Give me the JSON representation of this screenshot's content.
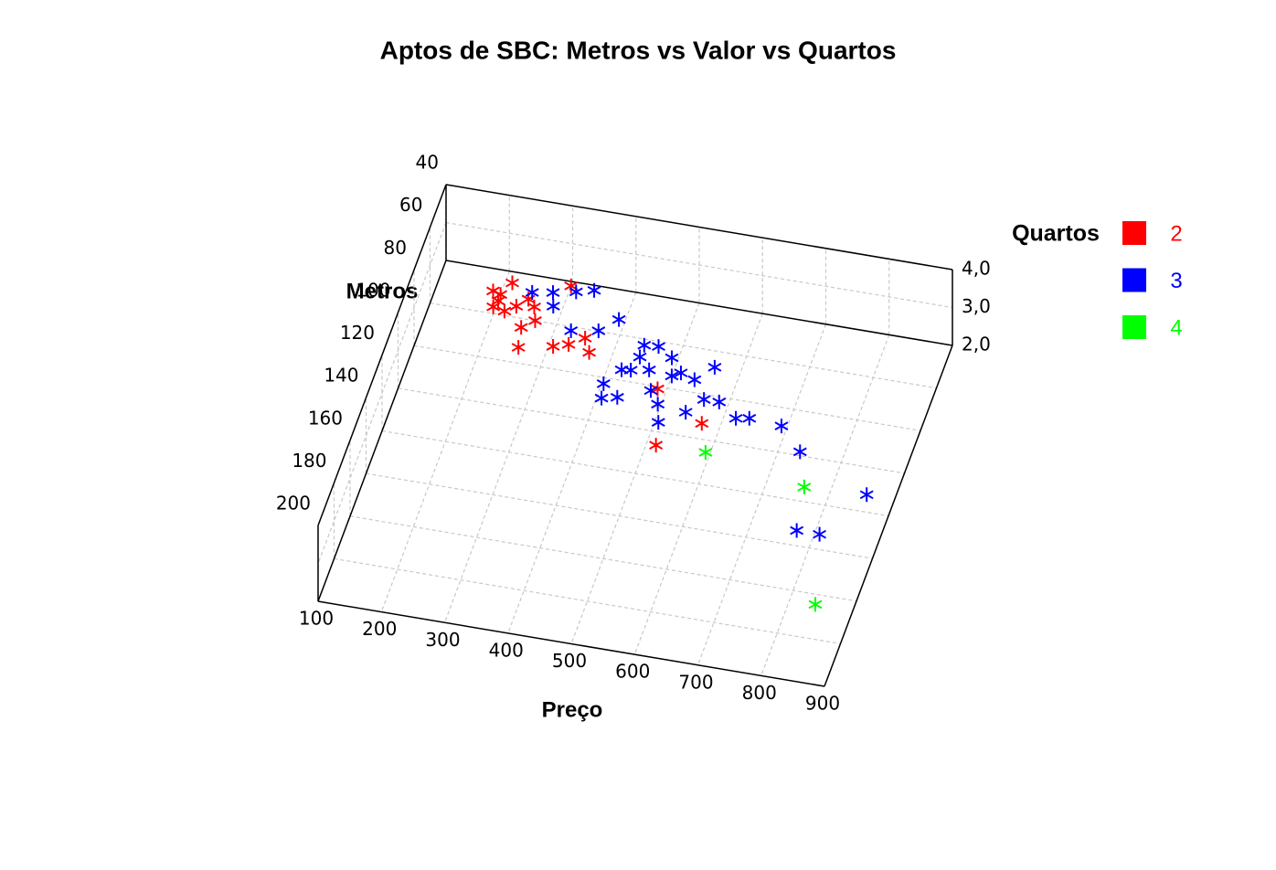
{
  "chart_data": {
    "type": "scatter3d",
    "title": "Aptos de SBC: Metros vs Valor vs Quartos",
    "x_label": "Preço",
    "y_label": "Metros",
    "legend_title": "Quartos",
    "xlim": [
      100,
      900
    ],
    "xticks": [
      100,
      200,
      300,
      400,
      500,
      600,
      700,
      800,
      900
    ],
    "ylim": [
      40,
      200
    ],
    "yticks": [
      40,
      60,
      80,
      100,
      120,
      140,
      160,
      180,
      200
    ],
    "zlim": [
      2,
      4
    ],
    "zticks": [
      {
        "value": 2,
        "label": "2,0"
      },
      {
        "value": 3,
        "label": "3,0"
      },
      {
        "value": 4,
        "label": "4,0"
      }
    ],
    "grid": true,
    "legend": "right",
    "series": [
      {
        "name": "2",
        "color": "#ff0000",
        "x": [
          187,
          211,
          200,
          230,
          257,
          196,
          249,
          266,
          256,
          307,
          329,
          350,
          364,
          300,
          486,
          571,
          515,
          215,
          244,
          200
        ],
        "y": [
          50,
          45,
          54,
          55,
          54,
          57,
          64,
          60,
          73,
          70,
          68,
          64,
          70,
          42,
          81,
          93,
          106,
          58,
          51,
          51
        ],
        "z": [
          2,
          2,
          2,
          2,
          2,
          2,
          2,
          2,
          2,
          2,
          2,
          2,
          2,
          2,
          2,
          2,
          2,
          2,
          2,
          2
        ]
      },
      {
        "name": "3",
        "color": "#0000ff",
        "x": [
          267,
          298,
          332,
          358,
          306,
          346,
          387,
          411,
          463,
          485,
          511,
          580,
          457,
          443,
          484,
          424,
          429,
          452,
          498,
          521,
          557,
          516,
          562,
          582,
          606,
          527,
          640,
          660,
          712,
          754,
          877,
          793,
          829,
          463,
          533
        ],
        "y": [
          64.5,
          63,
          61,
          59,
          69,
          78.5,
          76.5,
          70,
          79.5,
          79,
          83,
          84,
          91.5,
          92,
          90,
          99.5,
          106,
          104.5,
          99,
          91,
          91,
          104.5,
          106,
          99,
          99,
          112.5,
          105,
          104,
          105,
          115,
          129,
          150,
          150,
          85,
          89
        ],
        "z": [
          3,
          3,
          3,
          3,
          3,
          3,
          3,
          3,
          3,
          3,
          3,
          3,
          3,
          3,
          3,
          3,
          3,
          3,
          3,
          3,
          3,
          3,
          3,
          3,
          3,
          3,
          3,
          3,
          3,
          3,
          3,
          3,
          3,
          3,
          3
        ]
      },
      {
        "name": "4",
        "color": "#00ff00",
        "x": [
          635,
          801,
          883
        ],
        "y": [
          139,
          147,
          198
        ],
        "z": [
          4,
          4,
          4
        ]
      }
    ]
  }
}
